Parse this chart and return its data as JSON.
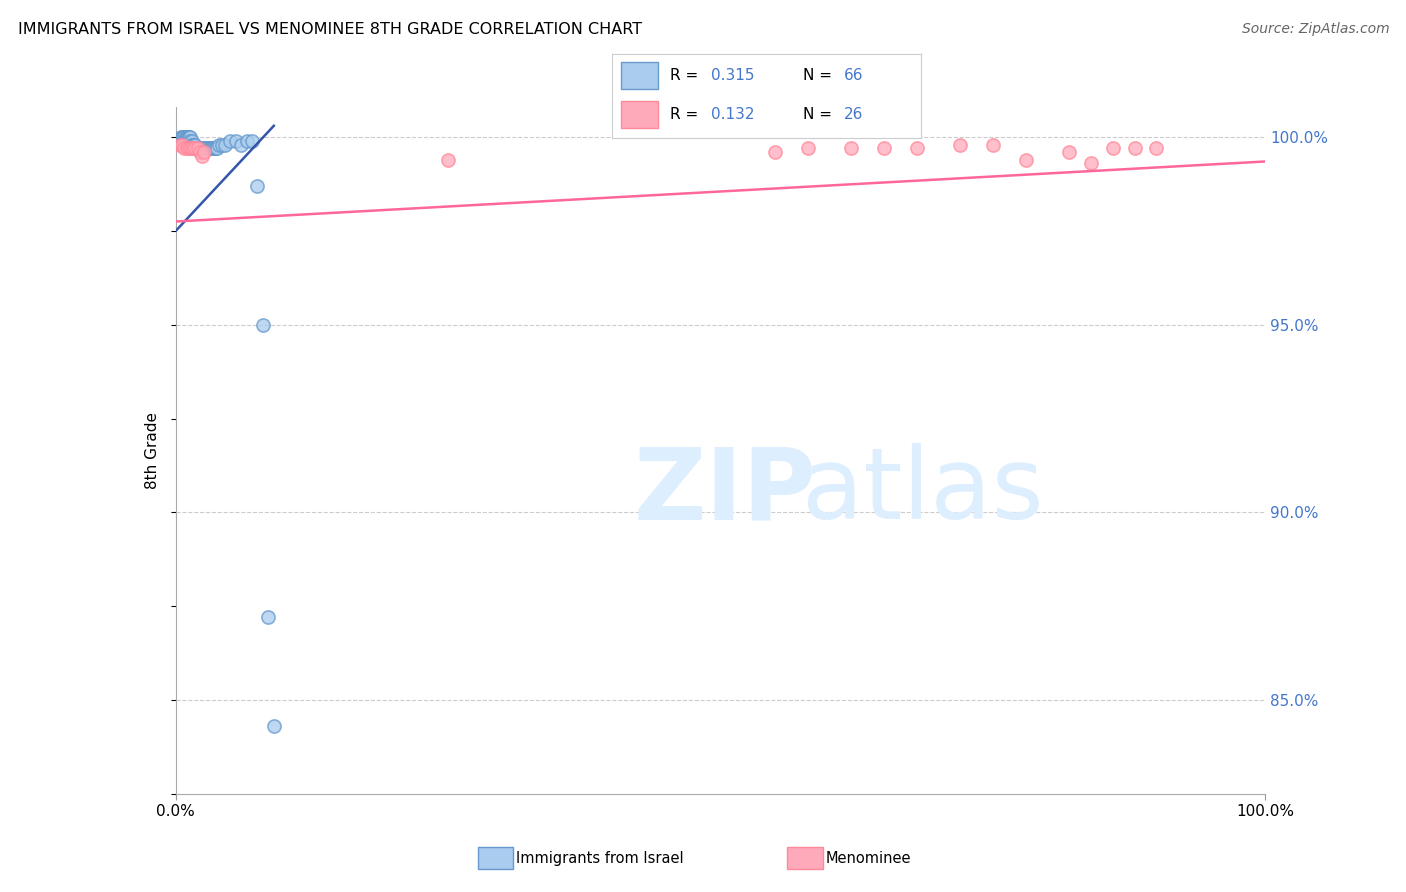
{
  "title": "IMMIGRANTS FROM ISRAEL VS MENOMINEE 8TH GRADE CORRELATION CHART",
  "source": "Source: ZipAtlas.com",
  "ylabel": "8th Grade",
  "xlim": [
    0.0,
    1.0
  ],
  "ylim": [
    0.825,
    1.008
  ],
  "yticks": [
    0.85,
    0.9,
    0.95,
    1.0
  ],
  "ytick_labels": [
    "85.0%",
    "90.0%",
    "95.0%",
    "100.0%"
  ],
  "blue_R": 0.315,
  "blue_N": 66,
  "pink_R": 0.132,
  "pink_N": 26,
  "blue_face_color": "#AACCEE",
  "blue_edge_color": "#6699CC",
  "pink_face_color": "#FFAABB",
  "pink_edge_color": "#FF8899",
  "blue_line_color": "#3355AA",
  "pink_line_color": "#FF6699",
  "grid_color": "#CCCCCC",
  "right_tick_color": "#4477CC",
  "watermark_color": "#DDEEFF",
  "blue_scatter_x": [
    0.003,
    0.004,
    0.005,
    0.005,
    0.006,
    0.006,
    0.007,
    0.007,
    0.008,
    0.008,
    0.009,
    0.009,
    0.01,
    0.01,
    0.011,
    0.011,
    0.012,
    0.012,
    0.013,
    0.013,
    0.014,
    0.014,
    0.015,
    0.015,
    0.016,
    0.016,
    0.017,
    0.017,
    0.018,
    0.018,
    0.019,
    0.019,
    0.02,
    0.02,
    0.021,
    0.021,
    0.022,
    0.023,
    0.024,
    0.025,
    0.025,
    0.026,
    0.027,
    0.028,
    0.029,
    0.03,
    0.031,
    0.032,
    0.033,
    0.034,
    0.035,
    0.036,
    0.037,
    0.038,
    0.04,
    0.042,
    0.045,
    0.05,
    0.055,
    0.06,
    0.065,
    0.07,
    0.075,
    0.08,
    0.085,
    0.09
  ],
  "blue_scatter_y": [
    0.999,
    0.999,
    1.0,
    0.999,
    1.0,
    0.999,
    1.0,
    0.999,
    1.0,
    0.999,
    1.0,
    0.999,
    1.0,
    0.999,
    1.0,
    0.999,
    1.0,
    0.999,
    1.0,
    0.999,
    0.998,
    0.998,
    0.999,
    0.998,
    0.998,
    0.997,
    0.998,
    0.997,
    0.998,
    0.997,
    0.997,
    0.997,
    0.997,
    0.997,
    0.997,
    0.997,
    0.997,
    0.997,
    0.997,
    0.997,
    0.997,
    0.997,
    0.997,
    0.997,
    0.997,
    0.997,
    0.997,
    0.997,
    0.997,
    0.997,
    0.997,
    0.997,
    0.997,
    0.997,
    0.998,
    0.998,
    0.998,
    0.999,
    0.999,
    0.998,
    0.999,
    0.999,
    0.987,
    0.95,
    0.872,
    0.843
  ],
  "pink_scatter_x": [
    0.004,
    0.006,
    0.008,
    0.01,
    0.012,
    0.014,
    0.016,
    0.018,
    0.02,
    0.022,
    0.024,
    0.026,
    0.25,
    0.55,
    0.58,
    0.62,
    0.65,
    0.68,
    0.72,
    0.75,
    0.78,
    0.82,
    0.84,
    0.86,
    0.88,
    0.9
  ],
  "pink_scatter_y": [
    0.998,
    0.998,
    0.997,
    0.997,
    0.997,
    0.997,
    0.997,
    0.997,
    0.997,
    0.996,
    0.995,
    0.996,
    0.994,
    0.996,
    0.997,
    0.997,
    0.997,
    0.997,
    0.998,
    0.998,
    0.994,
    0.996,
    0.993,
    0.997,
    0.997,
    0.997
  ],
  "blue_line_x": [
    0.0,
    0.09
  ],
  "blue_line_y": [
    0.975,
    1.003
  ],
  "pink_line_x": [
    0.0,
    1.0
  ],
  "pink_line_y": [
    0.9775,
    0.9935
  ]
}
